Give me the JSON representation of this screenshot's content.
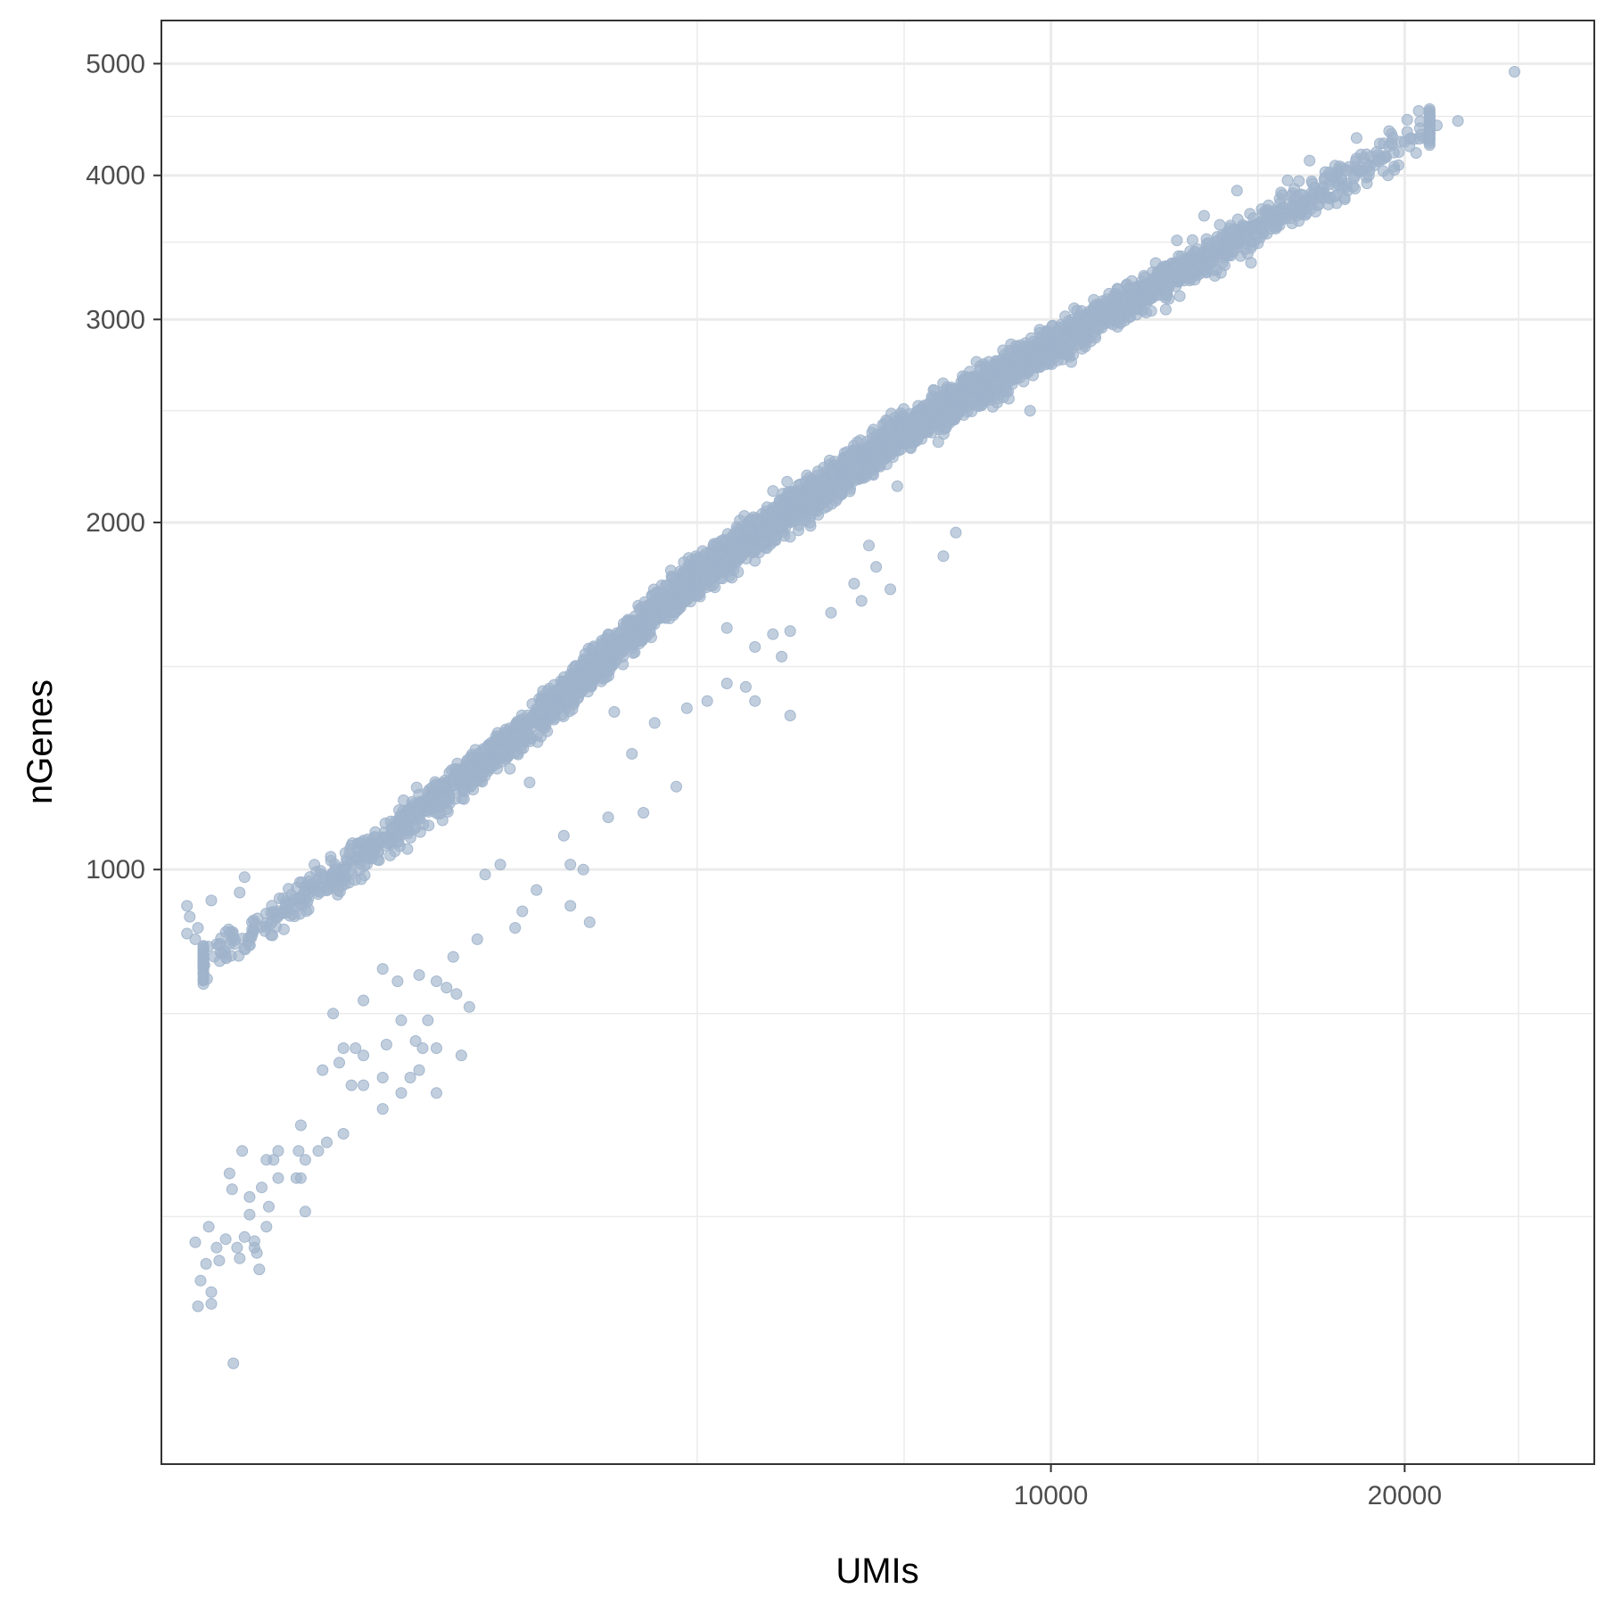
{
  "chart_data": {
    "type": "scatter",
    "xlabel": "UMIs",
    "ylabel": "nGenes",
    "x_scale": "log10",
    "y_scale": "log10",
    "xlim": [
      1750,
      29000
    ],
    "ylim": [
      305,
      5450
    ],
    "x_major_ticks": [
      10000,
      20000
    ],
    "x_tick_labels": [
      "10000",
      "20000"
    ],
    "x_minor_grid": [
      5000,
      7500,
      15000,
      25000
    ],
    "y_major_ticks": [
      1000,
      2000,
      3000,
      4000,
      5000
    ],
    "y_tick_labels": [
      "1000",
      "2000",
      "3000",
      "4000",
      "5000"
    ],
    "y_minor_grid": [
      500,
      750,
      1500,
      2500,
      3500,
      4500
    ],
    "grid": true,
    "legend": "none",
    "point_color": "#9fb3cb",
    "point_opacity": 0.65,
    "main_population": {
      "description_points": [
        [
          1900,
          830
        ],
        [
          2500,
          1000
        ],
        [
          3500,
          1300
        ],
        [
          5000,
          1800
        ],
        [
          7500,
          2400
        ],
        [
          10000,
          2850
        ],
        [
          15000,
          3600
        ],
        [
          20000,
          4300
        ]
      ],
      "approx_count": 4500
    },
    "points": [
      [
        24800,
        4920
      ],
      [
        22200,
        4460
      ],
      [
        21000,
        4480
      ],
      [
        21300,
        4420
      ],
      [
        20100,
        4470
      ],
      [
        19400,
        4370
      ],
      [
        18200,
        4310
      ],
      [
        16600,
        4120
      ],
      [
        15900,
        3960
      ],
      [
        14400,
        3880
      ],
      [
        14800,
        3360
      ],
      [
        13500,
        3690
      ],
      [
        12200,
        3200
      ],
      [
        11800,
        3060
      ],
      [
        9900,
        2760
      ],
      [
        9000,
        2540
      ],
      [
        8600,
        2620
      ],
      [
        9600,
        2500
      ],
      [
        8200,
        2440
      ],
      [
        7600,
        2320
      ],
      [
        7400,
        2150
      ],
      [
        8300,
        1960
      ],
      [
        7000,
        1910
      ],
      [
        8100,
        1870
      ],
      [
        6800,
        1770
      ],
      [
        7100,
        1830
      ],
      [
        5300,
        1620
      ],
      [
        6000,
        1610
      ],
      [
        5600,
        1560
      ],
      [
        5900,
        1530
      ],
      [
        6900,
        1710
      ],
      [
        7300,
        1750
      ],
      [
        5800,
        1600
      ],
      [
        6500,
        1670
      ],
      [
        6000,
        1360
      ],
      [
        4250,
        1370
      ],
      [
        4900,
        1380
      ],
      [
        5100,
        1400
      ],
      [
        5300,
        1450
      ],
      [
        5500,
        1440
      ],
      [
        5600,
        1400
      ],
      [
        4600,
        1340
      ],
      [
        4400,
        1260
      ],
      [
        3600,
        1190
      ],
      [
        4800,
        1180
      ],
      [
        4200,
        1110
      ],
      [
        4500,
        1120
      ],
      [
        3850,
        1070
      ],
      [
        3900,
        1010
      ],
      [
        4000,
        1000
      ],
      [
        3400,
        1010
      ],
      [
        3300,
        990
      ],
      [
        3650,
        960
      ],
      [
        3900,
        930
      ],
      [
        4050,
        900
      ],
      [
        3550,
        920
      ],
      [
        3500,
        890
      ],
      [
        3250,
        870
      ],
      [
        3100,
        840
      ],
      [
        2700,
        820
      ],
      [
        2780,
        800
      ],
      [
        3000,
        800
      ],
      [
        3060,
        790
      ],
      [
        3120,
        780
      ],
      [
        2900,
        810
      ],
      [
        3200,
        760
      ],
      [
        2600,
        770
      ],
      [
        2450,
        750
      ],
      [
        2800,
        740
      ],
      [
        2950,
        740
      ],
      [
        2880,
        710
      ],
      [
        2920,
        700
      ],
      [
        2720,
        705
      ],
      [
        2600,
        690
      ],
      [
        2480,
        680
      ],
      [
        2500,
        700
      ],
      [
        2400,
        670
      ],
      [
        2700,
        660
      ],
      [
        2600,
        650
      ],
      [
        2800,
        640
      ],
      [
        3000,
        700
      ],
      [
        3150,
        690
      ],
      [
        2900,
        670
      ],
      [
        3000,
        640
      ],
      [
        2850,
        660
      ],
      [
        2700,
        620
      ],
      [
        2540,
        650
      ],
      [
        2560,
        700
      ],
      [
        2300,
        600
      ],
      [
        2150,
        560
      ],
      [
        2500,
        590
      ],
      [
        2420,
        580
      ],
      [
        2380,
        570
      ],
      [
        2320,
        560
      ],
      [
        2280,
        540
      ],
      [
        2200,
        570
      ],
      [
        2050,
        570
      ],
      [
        2180,
        560
      ],
      [
        2000,
        545
      ],
      [
        2010,
        528
      ],
      [
        2130,
        530
      ],
      [
        2160,
        510
      ],
      [
        2080,
        502
      ],
      [
        2300,
        540
      ],
      [
        2290,
        570
      ],
      [
        2320,
        505
      ],
      [
        2030,
        470
      ],
      [
        2060,
        480
      ],
      [
        2040,
        460
      ],
      [
        1960,
        458
      ],
      [
        1930,
        430
      ],
      [
        1950,
        470
      ],
      [
        1890,
        440
      ],
      [
        1930,
        420
      ],
      [
        1910,
        455
      ],
      [
        1880,
        418
      ],
      [
        1870,
        475
      ],
      [
        1920,
        490
      ],
      [
        1985,
        478
      ],
      [
        2100,
        470
      ],
      [
        2150,
        490
      ],
      [
        2500,
        1000
      ],
      [
        2060,
        985
      ],
      [
        2040,
        955
      ],
      [
        1930,
        940
      ],
      [
        1840,
        930
      ],
      [
        1840,
        880
      ],
      [
        1850,
        910
      ],
      [
        1880,
        890
      ],
      [
        1870,
        870
      ],
      [
        1960,
        860
      ],
      [
        2200,
        540
      ],
      [
        2080,
        520
      ],
      [
        2100,
        476
      ],
      [
        2110,
        465
      ],
      [
        2120,
        450
      ],
      [
        2015,
        373
      ]
    ]
  }
}
